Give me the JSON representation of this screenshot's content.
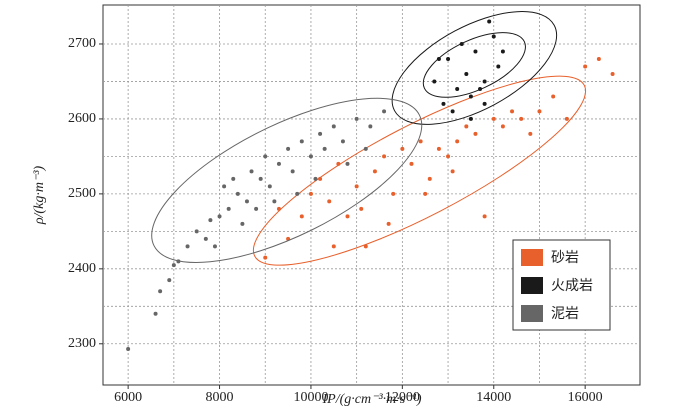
{
  "chart_data": {
    "type": "scatter",
    "x_label": "IP/(g·cm⁻³·m·s⁻¹)",
    "y_label": "ρ/(kg·m⁻³)",
    "xlim": [
      5450,
      17200
    ],
    "ylim": [
      2245,
      2752
    ],
    "xticks": [
      6000,
      8000,
      10000,
      12000,
      14000,
      16000
    ],
    "yticks": [
      2300,
      2400,
      2500,
      2600,
      2700
    ],
    "x_minor_ticks": [
      7000,
      9000,
      11000,
      13000,
      15000
    ],
    "y_minor_ticks": [
      2350,
      2450,
      2550,
      2650
    ],
    "grid": true,
    "legend": "lower right",
    "series": [
      {
        "name": "砂岩",
        "color": "#e8602c",
        "x": [
          9000,
          9500,
          9800,
          10000,
          10200,
          10400,
          10600,
          10800,
          11000,
          11200,
          11400,
          11600,
          11800,
          12000,
          12200,
          12400,
          12600,
          12800,
          13000,
          13200,
          13400,
          13600,
          13800,
          14000,
          14200,
          14400,
          14600,
          15000,
          15300,
          15600,
          16000,
          16300,
          16600,
          10500,
          11100,
          12500,
          13100,
          14800,
          9300,
          11700
        ],
        "values": [
          2415,
          2440,
          2470,
          2500,
          2520,
          2490,
          2540,
          2470,
          2510,
          2430,
          2530,
          2550,
          2500,
          2560,
          2540,
          2570,
          2520,
          2560,
          2550,
          2570,
          2590,
          2580,
          2470,
          2600,
          2590,
          2610,
          2600,
          2610,
          2630,
          2600,
          2670,
          2680,
          2660,
          2430,
          2480,
          2500,
          2530,
          2580,
          2480,
          2460
        ],
        "ellipse": {
          "center": [
            12375,
            2531
          ],
          "major_end": [
            15980,
            2645
          ],
          "minor_end": [
            11920,
            2585
          ]
        }
      },
      {
        "name": "火成岩",
        "color": "#1a1a1a",
        "x": [
          12700,
          12900,
          13000,
          13200,
          13300,
          13400,
          13500,
          13600,
          13700,
          13800,
          13900,
          14000,
          14100,
          13500,
          13100,
          14200,
          13800,
          12800
        ],
        "values": [
          2650,
          2620,
          2680,
          2640,
          2700,
          2660,
          2630,
          2690,
          2640,
          2650,
          2730,
          2710,
          2670,
          2600,
          2610,
          2690,
          2620,
          2680
        ],
        "ellipses": [
          {
            "center": [
              13576,
              2668
            ],
            "major_end": [
              15323,
              2725
            ],
            "minor_end": [
              13140,
              2717
            ]
          },
          {
            "center": [
              13576,
              2672
            ],
            "major_end": [
              14670,
              2703
            ],
            "minor_end": [
              13315,
              2701
            ]
          }
        ]
      },
      {
        "name": "泥岩",
        "color": "#666666",
        "x": [
          6000,
          6600,
          6700,
          6900,
          7000,
          7100,
          7300,
          7500,
          7700,
          7800,
          8000,
          8200,
          8400,
          8300,
          8600,
          8700,
          8900,
          9000,
          9100,
          9300,
          9500,
          9600,
          9800,
          10000,
          10200,
          10300,
          10500,
          10700,
          11000,
          11300,
          11600,
          9200,
          8800,
          8500,
          7900,
          10800,
          10100,
          9700,
          11200,
          8100
        ],
        "values": [
          2293,
          2340,
          2370,
          2385,
          2405,
          2410,
          2430,
          2450,
          2440,
          2465,
          2470,
          2480,
          2500,
          2520,
          2490,
          2530,
          2520,
          2550,
          2510,
          2540,
          2560,
          2530,
          2570,
          2550,
          2580,
          2560,
          2590,
          2570,
          2600,
          2590,
          2610,
          2490,
          2480,
          2460,
          2430,
          2540,
          2520,
          2500,
          2560,
          2510
        ],
        "ellipse": {
          "center": [
            9470,
            2518
          ],
          "major_end": [
            12375,
            2605
          ],
          "minor_end": [
            8950,
            2585
          ]
        }
      }
    ]
  }
}
